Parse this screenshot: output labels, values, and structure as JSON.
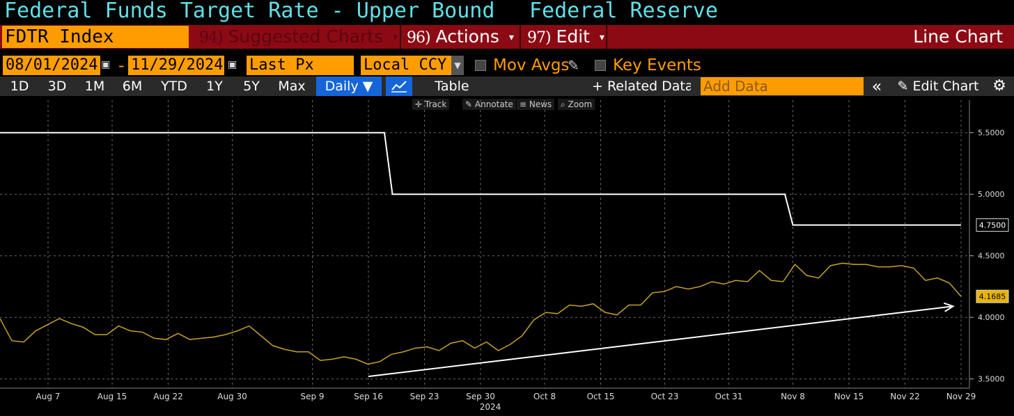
{
  "header": {
    "title": "Federal Funds Target Rate - Upper Bound",
    "source": "Federal Reserve"
  },
  "command_bar": {
    "ticker": "FDTR Index",
    "suggested": {
      "num": "94)",
      "label": "Suggested Charts",
      "caret": "▾"
    },
    "actions": {
      "num": "96)",
      "label": "Actions",
      "caret": "▾"
    },
    "edit": {
      "num": "97)",
      "label": "Edit",
      "caret": "▾"
    },
    "chart_type": "Line Chart"
  },
  "settings": {
    "start_date": "08/01/2024",
    "separator": "-",
    "end_date": "11/29/2024",
    "field": "Last Px",
    "currency": "Local CCY",
    "mov_avgs": "Mov Avgs",
    "key_events": "Key Events"
  },
  "toolbar": {
    "ranges": [
      "1D",
      "3D",
      "1M",
      "6M",
      "YTD",
      "1Y",
      "5Y",
      "Max"
    ],
    "frequency": "Daily ▼",
    "table": "Table",
    "related": "+ Related Data",
    "add_data_placeholder": "Add Data",
    "collapse": "«",
    "edit_chart": "Edit Chart",
    "settings_icon": "gear-icon"
  },
  "chart_tools": {
    "track": "Track",
    "annotate": "Annotate",
    "news": "News",
    "zoom": "Zoom"
  },
  "colors": {
    "background": "#000000",
    "title_text": "#5fe0e8",
    "accent_orange": "#ff9d00",
    "command_bar": "#8c0a14",
    "series_rate": "#ffffff",
    "series_yield": "#c9a227"
  },
  "chart_data": {
    "type": "line",
    "x_ticks": [
      "Aug 7",
      "Aug 15",
      "Aug 22",
      "Aug 30",
      "Sep 9",
      "Sep 16",
      "Sep 23",
      "Sep 30",
      "Oct 8",
      "Oct 15",
      "Oct 23",
      "Oct 31",
      "Nov 8",
      "Nov 15",
      "Nov 22",
      "Nov 29"
    ],
    "year_label": "2024",
    "y_ticks": [
      "5.5000",
      "5.0000",
      "4.5000",
      "4.0000",
      "3.5000"
    ],
    "ylim": [
      3.47,
      5.73
    ],
    "grid": true,
    "series": [
      {
        "name": "FDTR Index",
        "color": "#ffffff",
        "last_label": "4.7500",
        "points": [
          [
            "2024-08-01",
            5.5
          ],
          [
            "2024-09-18",
            5.5
          ],
          [
            "2024-09-19",
            5.0
          ],
          [
            "2024-11-07",
            5.0
          ],
          [
            "2024-11-08",
            4.75
          ],
          [
            "2024-11-29",
            4.75
          ]
        ]
      },
      {
        "name": "",
        "color": "#c9a227",
        "last_label": "4.1685",
        "values": [
          3.99,
          3.81,
          3.8,
          3.89,
          3.94,
          3.99,
          3.95,
          3.92,
          3.86,
          3.86,
          3.93,
          3.89,
          3.88,
          3.83,
          3.82,
          3.87,
          3.82,
          3.83,
          3.84,
          3.86,
          3.89,
          3.93,
          3.85,
          3.77,
          3.74,
          3.72,
          3.72,
          3.65,
          3.66,
          3.68,
          3.66,
          3.62,
          3.64,
          3.7,
          3.72,
          3.75,
          3.76,
          3.73,
          3.79,
          3.81,
          3.75,
          3.8,
          3.73,
          3.78,
          3.85,
          3.98,
          4.04,
          4.03,
          4.1,
          4.09,
          4.11,
          4.04,
          4.02,
          4.1,
          4.1,
          4.2,
          4.21,
          4.25,
          4.23,
          4.25,
          4.29,
          4.27,
          4.3,
          4.29,
          4.38,
          4.3,
          4.29,
          4.43,
          4.34,
          4.32,
          4.42,
          4.44,
          4.43,
          4.43,
          4.41,
          4.41,
          4.42,
          4.4,
          4.3,
          4.32,
          4.28,
          4.17
        ]
      }
    ],
    "annotations": [
      {
        "type": "arrow",
        "from": [
          "2024-09-16",
          3.52
        ],
        "to": [
          "2024-11-28",
          4.09
        ]
      }
    ]
  }
}
